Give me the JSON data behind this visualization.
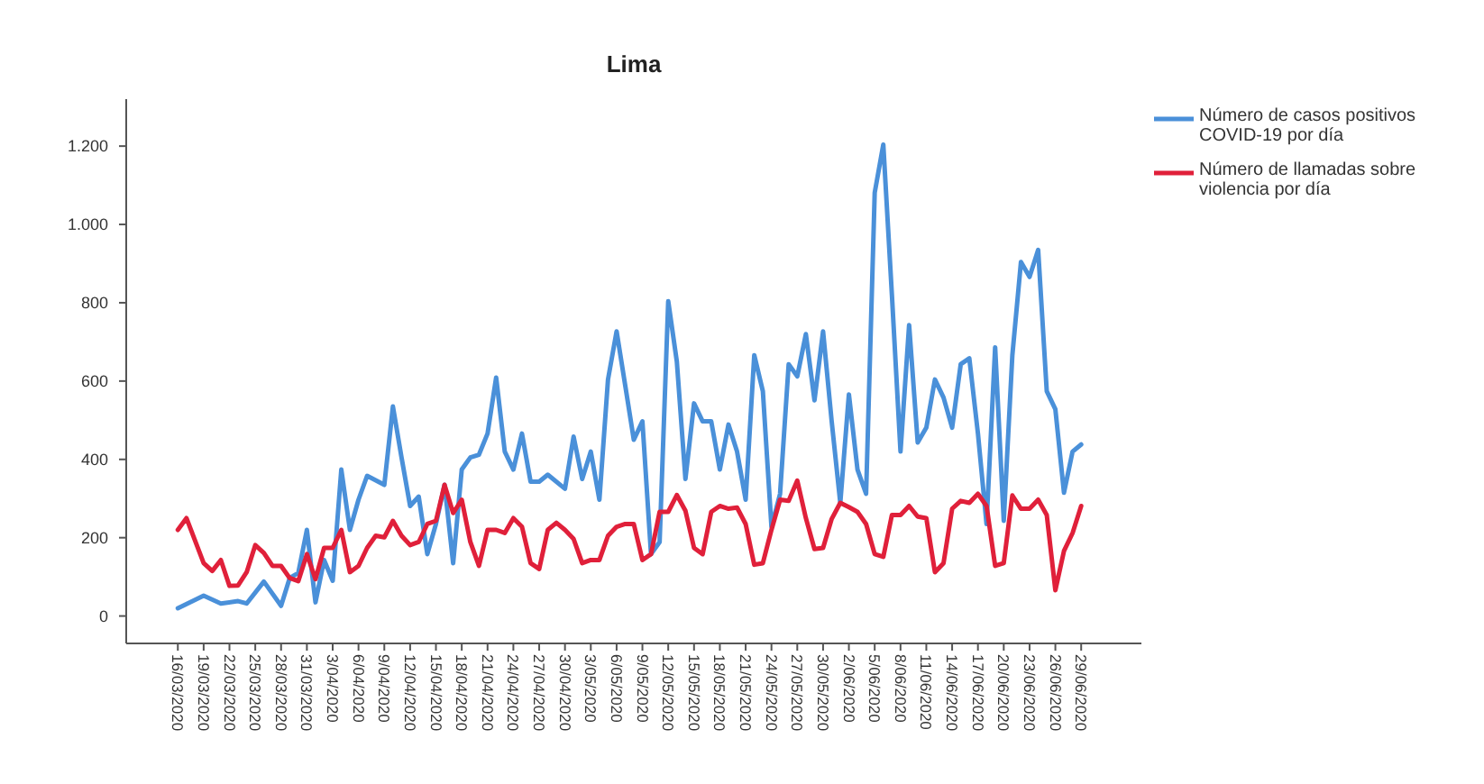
{
  "chart_data": {
    "type": "line",
    "title": "Lima",
    "legend": "top right",
    "grid": false,
    "xlim": [
      "2020-03-10",
      "2020-07-06"
    ],
    "ylim": [
      -70,
      1320
    ],
    "yticks": [
      0,
      200,
      400,
      600,
      800,
      {
        "value": 1000,
        "label": "1.000"
      },
      {
        "value": 1200,
        "label": "1.200"
      }
    ],
    "xticks": [
      {
        "value": "2020-03-16",
        "label": "16/03/2020"
      },
      {
        "value": "2020-03-19",
        "label": "19/03/2020"
      },
      {
        "value": "2020-03-22",
        "label": "22/03/2020"
      },
      {
        "value": "2020-03-25",
        "label": "25/03/2020"
      },
      {
        "value": "2020-03-28",
        "label": "28/03/2020"
      },
      {
        "value": "2020-03-31",
        "label": "31/03/2020"
      },
      {
        "value": "2020-04-03",
        "label": "3/04/2020"
      },
      {
        "value": "2020-04-06",
        "label": "6/04/2020"
      },
      {
        "value": "2020-04-09",
        "label": "9/04/2020"
      },
      {
        "value": "2020-04-12",
        "label": "12/04/2020"
      },
      {
        "value": "2020-04-15",
        "label": "15/04/2020"
      },
      {
        "value": "2020-04-18",
        "label": "18/04/2020"
      },
      {
        "value": "2020-04-21",
        "label": "21/04/2020"
      },
      {
        "value": "2020-04-24",
        "label": "24/04/2020"
      },
      {
        "value": "2020-04-27",
        "label": "27/04/2020"
      },
      {
        "value": "2020-04-30",
        "label": "30/04/2020"
      },
      {
        "value": "2020-05-03",
        "label": "3/05/2020"
      },
      {
        "value": "2020-05-06",
        "label": "6/05/2020"
      },
      {
        "value": "2020-05-09",
        "label": "9/05/2020"
      },
      {
        "value": "2020-05-12",
        "label": "12/05/2020"
      },
      {
        "value": "2020-05-15",
        "label": "15/05/2020"
      },
      {
        "value": "2020-05-18",
        "label": "18/05/2020"
      },
      {
        "value": "2020-05-21",
        "label": "21/05/2020"
      },
      {
        "value": "2020-05-24",
        "label": "24/05/2020"
      },
      {
        "value": "2020-05-27",
        "label": "27/05/2020"
      },
      {
        "value": "2020-05-30",
        "label": "30/05/2020"
      },
      {
        "value": "2020-06-02",
        "label": "2/06/2020"
      },
      {
        "value": "2020-06-05",
        "label": "5/06/2020"
      },
      {
        "value": "2020-06-08",
        "label": "8/06/2020"
      },
      {
        "value": "2020-06-11",
        "label": "11/06/2020"
      },
      {
        "value": "2020-06-14",
        "label": "14/06/2020"
      },
      {
        "value": "2020-06-17",
        "label": "17/06/2020"
      },
      {
        "value": "2020-06-20",
        "label": "20/06/2020"
      },
      {
        "value": "2020-06-23",
        "label": "23/06/2020"
      },
      {
        "value": "2020-06-26",
        "label": "26/06/2020"
      },
      {
        "value": "2020-06-29",
        "label": "29/06/2020"
      }
    ],
    "series": [
      {
        "name": "Número de casos positivos COVID-19 por día",
        "color": "#4a90d9",
        "x": [
          "2020-03-16",
          "2020-03-19",
          "2020-03-21",
          "2020-03-23",
          "2020-03-24",
          "2020-03-26",
          "2020-03-28",
          "2020-03-29",
          "2020-03-30",
          "2020-03-31",
          "2020-04-01",
          "2020-04-02",
          "2020-04-03",
          "2020-04-04",
          "2020-04-05",
          "2020-04-06",
          "2020-04-07",
          "2020-04-09",
          "2020-04-10",
          "2020-04-11",
          "2020-04-12",
          "2020-04-13",
          "2020-04-14",
          "2020-04-15",
          "2020-04-16",
          "2020-04-17",
          "2020-04-18",
          "2020-04-19",
          "2020-04-20",
          "2020-04-21",
          "2020-04-22",
          "2020-04-23",
          "2020-04-24",
          "2020-04-25",
          "2020-04-26",
          "2020-04-27",
          "2020-04-28",
          "2020-04-30",
          "2020-05-01",
          "2020-05-02",
          "2020-05-03",
          "2020-05-04",
          "2020-05-05",
          "2020-05-06",
          "2020-05-07",
          "2020-05-08",
          "2020-05-09",
          "2020-05-10",
          "2020-05-11",
          "2020-05-12",
          "2020-05-13",
          "2020-05-14",
          "2020-05-15",
          "2020-05-16",
          "2020-05-17",
          "2020-05-18",
          "2020-05-19",
          "2020-05-20",
          "2020-05-21",
          "2020-05-22",
          "2020-05-23",
          "2020-05-24",
          "2020-05-25",
          "2020-05-26",
          "2020-05-27",
          "2020-05-28",
          "2020-05-29",
          "2020-05-30",
          "2020-05-31",
          "2020-06-01",
          "2020-06-02",
          "2020-06-03",
          "2020-06-04",
          "2020-06-05",
          "2020-06-06",
          "2020-06-07",
          "2020-06-08",
          "2020-06-09",
          "2020-06-10",
          "2020-06-11",
          "2020-06-12",
          "2020-06-13",
          "2020-06-14",
          "2020-06-15",
          "2020-06-16",
          "2020-06-17",
          "2020-06-18",
          "2020-06-19",
          "2020-06-20",
          "2020-06-21",
          "2020-06-22",
          "2020-06-23",
          "2020-06-24",
          "2020-06-25",
          "2020-06-26",
          "2020-06-27",
          "2020-06-28",
          "2020-06-29"
        ],
        "values": [
          20,
          52,
          32,
          38,
          32,
          88,
          26,
          97,
          110,
          220,
          35,
          143,
          90,
          374,
          220,
          297,
          358,
          335,
          535,
          405,
          281,
          305,
          158,
          235,
          335,
          135,
          374,
          405,
          412,
          466,
          609,
          420,
          374,
          466,
          343,
          343,
          361,
          325,
          458,
          350,
          420,
          297,
          604,
          727,
          589,
          450,
          497,
          158,
          189,
          804,
          650,
          350,
          543,
          497,
          497,
          374,
          489,
          420,
          297,
          666,
          574,
          228,
          312,
          643,
          612,
          720,
          551,
          727,
          497,
          289,
          566,
          374,
          312,
          1081,
          1204,
          820,
          420,
          743,
          443,
          481,
          604,
          558,
          481,
          643,
          658,
          466,
          235,
          686,
          243,
          666,
          904,
          866,
          935,
          574,
          528,
          315,
          420,
          438
        ]
      },
      {
        "name": "Número de llamadas sobre violencia por día",
        "color": "#e0203a",
        "x": [
          "2020-03-16",
          "2020-03-17",
          "2020-03-19",
          "2020-03-20",
          "2020-03-21",
          "2020-03-22",
          "2020-03-23",
          "2020-03-24",
          "2020-03-25",
          "2020-03-26",
          "2020-03-27",
          "2020-03-28",
          "2020-03-29",
          "2020-03-30",
          "2020-03-31",
          "2020-04-01",
          "2020-04-02",
          "2020-04-03",
          "2020-04-04",
          "2020-04-05",
          "2020-04-06",
          "2020-04-07",
          "2020-04-08",
          "2020-04-09",
          "2020-04-10",
          "2020-04-11",
          "2020-04-12",
          "2020-04-13",
          "2020-04-14",
          "2020-04-15",
          "2020-04-16",
          "2020-04-17",
          "2020-04-18",
          "2020-04-19",
          "2020-04-20",
          "2020-04-21",
          "2020-04-22",
          "2020-04-23",
          "2020-04-24",
          "2020-04-25",
          "2020-04-26",
          "2020-04-27",
          "2020-04-28",
          "2020-04-29",
          "2020-04-30",
          "2020-05-01",
          "2020-05-02",
          "2020-05-03",
          "2020-05-04",
          "2020-05-05",
          "2020-05-06",
          "2020-05-07",
          "2020-05-08",
          "2020-05-09",
          "2020-05-10",
          "2020-05-11",
          "2020-05-12",
          "2020-05-13",
          "2020-05-14",
          "2020-05-15",
          "2020-05-16",
          "2020-05-17",
          "2020-05-18",
          "2020-05-19",
          "2020-05-20",
          "2020-05-21",
          "2020-05-22",
          "2020-05-23",
          "2020-05-24",
          "2020-05-25",
          "2020-05-26",
          "2020-05-27",
          "2020-05-28",
          "2020-05-29",
          "2020-05-30",
          "2020-05-31",
          "2020-06-01",
          "2020-06-02",
          "2020-06-03",
          "2020-06-04",
          "2020-06-05",
          "2020-06-06",
          "2020-06-07",
          "2020-06-08",
          "2020-06-09",
          "2020-06-10",
          "2020-06-11",
          "2020-06-12",
          "2020-06-13",
          "2020-06-14",
          "2020-06-15",
          "2020-06-16",
          "2020-06-17",
          "2020-06-18",
          "2020-06-19",
          "2020-06-20",
          "2020-06-21",
          "2020-06-22",
          "2020-06-23",
          "2020-06-24",
          "2020-06-25",
          "2020-06-26",
          "2020-06-27",
          "2020-06-28",
          "2020-06-29"
        ],
        "values": [
          220,
          250,
          135,
          115,
          143,
          77,
          78,
          112,
          181,
          161,
          128,
          128,
          97,
          89,
          158,
          94,
          174,
          174,
          220,
          112,
          128,
          174,
          205,
          201,
          243,
          205,
          181,
          189,
          235,
          243,
          335,
          263,
          297,
          189,
          128,
          220,
          220,
          212,
          250,
          228,
          135,
          120,
          220,
          238,
          220,
          197,
          135,
          143,
          143,
          205,
          228,
          235,
          235,
          143,
          158,
          266,
          266,
          309,
          269,
          174,
          158,
          266,
          281,
          274,
          277,
          235,
          131,
          135,
          220,
          297,
          294,
          346,
          250,
          171,
          174,
          248,
          289,
          278,
          266,
          235,
          158,
          151,
          258,
          258,
          281,
          254,
          250,
          112,
          135,
          274,
          294,
          289,
          312,
          281,
          128,
          135,
          308,
          274,
          274,
          297,
          258,
          66,
          166,
          212,
          281
        ]
      }
    ]
  }
}
